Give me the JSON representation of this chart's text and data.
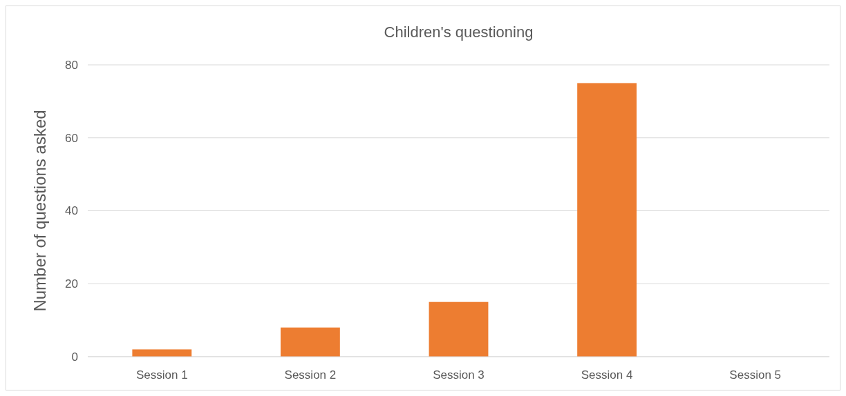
{
  "chart_data": {
    "type": "bar",
    "title": "Children's questioning",
    "ylabel": "Number of questions asked",
    "categories": [
      "Session 1",
      "Session 2",
      "Session 3",
      "Session 4",
      "Session 5"
    ],
    "values": [
      2,
      8,
      15,
      75,
      0
    ],
    "color": "#ed7d31",
    "ylim": [
      0,
      80
    ],
    "yticks": [
      0,
      20,
      40,
      60,
      80
    ],
    "grid": "y"
  }
}
